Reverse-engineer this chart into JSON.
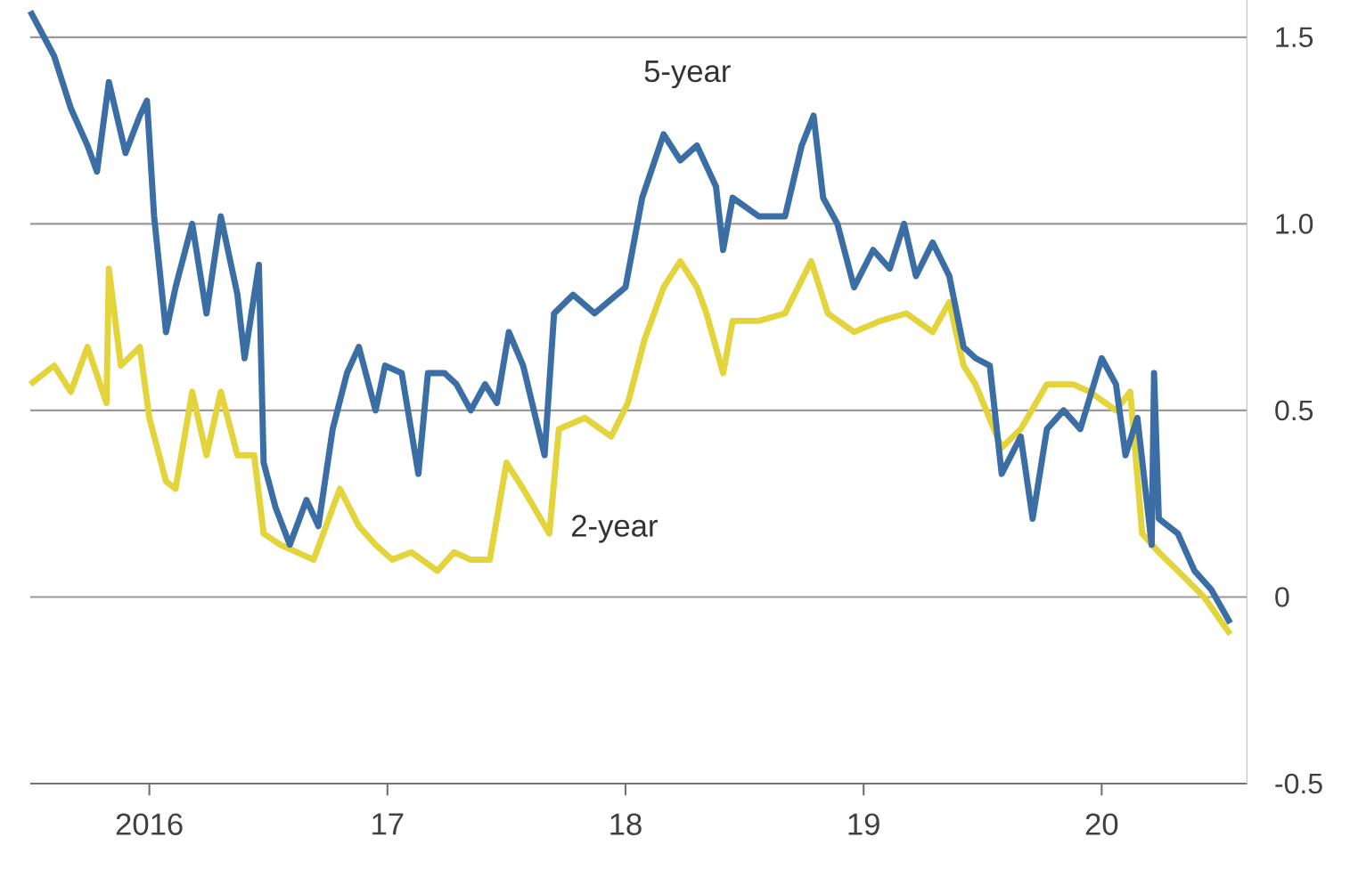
{
  "chart_data": {
    "type": "line",
    "grid": "y",
    "xlim": [
      2015.5,
      2020.61
    ],
    "ylim": [
      -0.5,
      1.6
    ],
    "xticks": [
      {
        "value": 2016,
        "label": "2016"
      },
      {
        "value": 2017,
        "label": "17"
      },
      {
        "value": 2018,
        "label": "18"
      },
      {
        "value": 2019,
        "label": "19"
      },
      {
        "value": 2020,
        "label": "20"
      }
    ],
    "yticks": [
      {
        "value": -0.5,
        "label": "-0.5"
      },
      {
        "value": 0,
        "label": "0"
      },
      {
        "value": 0.5,
        "label": "0.5"
      },
      {
        "value": 1,
        "label": "1.0"
      },
      {
        "value": 1.5,
        "label": "1.5"
      }
    ],
    "series": [
      {
        "name": "2-year",
        "color": "#e3d43c",
        "x": [
          2015.5,
          2015.6,
          2015.67,
          2015.74,
          2015.82,
          2015.83,
          2015.88,
          2015.96,
          2016.0,
          2016.07,
          2016.11,
          2016.18,
          2016.24,
          2016.3,
          2016.37,
          2016.44,
          2016.48,
          2016.55,
          2016.62,
          2016.69,
          2016.8,
          2016.88,
          2016.95,
          2017.02,
          2017.1,
          2017.21,
          2017.28,
          2017.35,
          2017.43,
          2017.5,
          2017.57,
          2017.68,
          2017.72,
          2017.83,
          2017.94,
          2018.01,
          2018.08,
          2018.16,
          2018.23,
          2018.3,
          2018.34,
          2018.41,
          2018.45,
          2018.56,
          2018.67,
          2018.78,
          2018.85,
          2018.96,
          2019.07,
          2019.18,
          2019.29,
          2019.36,
          2019.42,
          2019.47,
          2019.58,
          2019.66,
          2019.77,
          2019.88,
          2019.95,
          2020.06,
          2020.12,
          2020.17,
          2020.24,
          2020.32,
          2020.43,
          2020.54
        ],
        "values": [
          0.57,
          0.62,
          0.55,
          0.67,
          0.52,
          0.88,
          0.62,
          0.67,
          0.48,
          0.31,
          0.29,
          0.55,
          0.38,
          0.55,
          0.38,
          0.38,
          0.17,
          0.14,
          0.12,
          0.1,
          0.29,
          0.19,
          0.14,
          0.1,
          0.12,
          0.07,
          0.12,
          0.1,
          0.1,
          0.36,
          0.29,
          0.17,
          0.45,
          0.48,
          0.43,
          0.52,
          0.69,
          0.83,
          0.9,
          0.83,
          0.76,
          0.6,
          0.74,
          0.74,
          0.76,
          0.9,
          0.76,
          0.71,
          0.74,
          0.76,
          0.71,
          0.79,
          0.62,
          0.57,
          0.4,
          0.45,
          0.57,
          0.57,
          0.55,
          0.5,
          0.55,
          0.17,
          0.12,
          0.07,
          0.0,
          -0.1
        ]
      },
      {
        "name": "5-year",
        "color": "#3a6ea5",
        "x": [
          2015.5,
          2015.6,
          2015.67,
          2015.74,
          2015.78,
          2015.83,
          2015.9,
          2015.96,
          2015.99,
          2016.02,
          2016.07,
          2016.11,
          2016.18,
          2016.24,
          2016.3,
          2016.37,
          2016.4,
          2016.46,
          2016.48,
          2016.53,
          2016.59,
          2016.66,
          2016.71,
          2016.77,
          2016.83,
          2016.88,
          2016.95,
          2016.99,
          2017.06,
          2017.13,
          2017.17,
          2017.24,
          2017.29,
          2017.35,
          2017.41,
          2017.46,
          2017.51,
          2017.57,
          2017.66,
          2017.7,
          2017.78,
          2017.87,
          2018.0,
          2018.07,
          2018.16,
          2018.23,
          2018.3,
          2018.38,
          2018.41,
          2018.45,
          2018.56,
          2018.67,
          2018.74,
          2018.79,
          2018.83,
          2018.89,
          2018.96,
          2019.04,
          2019.11,
          2019.17,
          2019.22,
          2019.29,
          2019.36,
          2019.42,
          2019.47,
          2019.53,
          2019.58,
          2019.66,
          2019.71,
          2019.77,
          2019.84,
          2019.91,
          2020.0,
          2020.06,
          2020.1,
          2020.15,
          2020.21,
          2020.22,
          2020.24,
          2020.32,
          2020.39,
          2020.46,
          2020.54
        ],
        "values": [
          1.57,
          1.45,
          1.31,
          1.21,
          1.14,
          1.38,
          1.19,
          1.29,
          1.33,
          1.02,
          0.71,
          0.83,
          1.0,
          0.76,
          1.02,
          0.81,
          0.64,
          0.89,
          0.36,
          0.24,
          0.14,
          0.26,
          0.19,
          0.45,
          0.6,
          0.67,
          0.5,
          0.62,
          0.6,
          0.33,
          0.6,
          0.6,
          0.57,
          0.5,
          0.57,
          0.52,
          0.71,
          0.62,
          0.38,
          0.76,
          0.81,
          0.76,
          0.83,
          1.07,
          1.24,
          1.17,
          1.21,
          1.1,
          0.93,
          1.07,
          1.02,
          1.02,
          1.21,
          1.29,
          1.07,
          1.0,
          0.83,
          0.93,
          0.88,
          1.0,
          0.86,
          0.95,
          0.86,
          0.67,
          0.64,
          0.62,
          0.33,
          0.43,
          0.21,
          0.45,
          0.5,
          0.45,
          0.64,
          0.57,
          0.38,
          0.48,
          0.14,
          0.6,
          0.21,
          0.17,
          0.07,
          0.02,
          -0.07
        ]
      }
    ]
  }
}
